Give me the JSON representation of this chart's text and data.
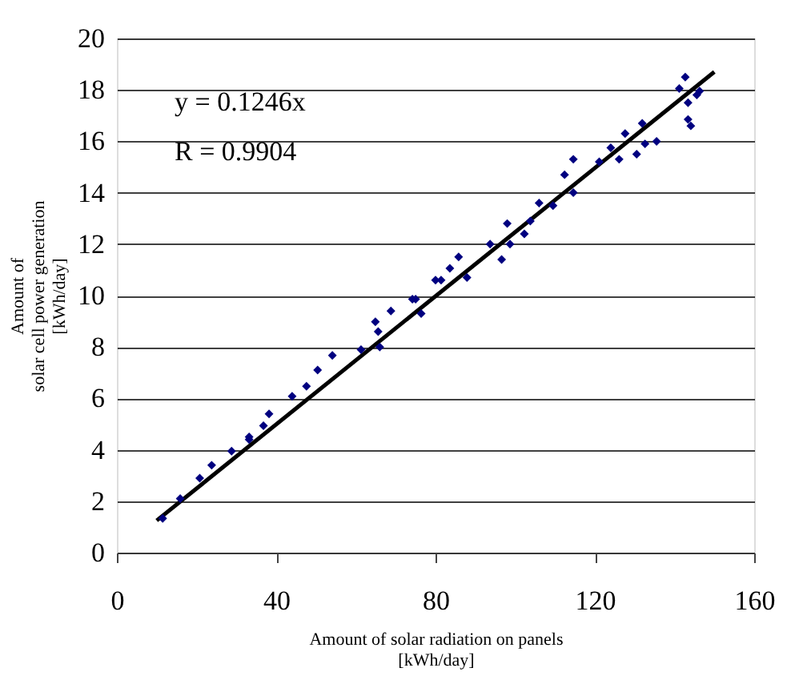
{
  "chart_data": {
    "type": "scatter",
    "xlabel": "Amount of solar radiation on panels\n[kWh/day]",
    "ylabel": "Amount of\nsolar cell power generation\n[kWh/day]",
    "xlim": [
      0,
      160
    ],
    "xticks": [
      0,
      40,
      80,
      120,
      160
    ],
    "ylim": [
      0,
      20
    ],
    "yticks": [
      0,
      2,
      4,
      6,
      8,
      10,
      12,
      14,
      16,
      18,
      20
    ],
    "grid": "y",
    "marker": "diamond",
    "annotations": [
      "y = 0.1246x",
      "R  = 0.9904"
    ],
    "series": [
      {
        "color": "#000080",
        "x": [
          11.5,
          15.9,
          20.8,
          23.8,
          28.8,
          33.2,
          33.2,
          36.8,
          38.2,
          44,
          47.6,
          50.4,
          54.1,
          61.3,
          64.9,
          66,
          65.6,
          68.8,
          74.2,
          76.4,
          80,
          75,
          81.4,
          83.6,
          85.8,
          87.9,
          93.7,
          96.6,
          98,
          98.7,
          102.3,
          103.8,
          106,
          109.5,
          112.4,
          114.6,
          114.6,
          121.1,
          124,
          126.1,
          127.6,
          130.5,
          131.9,
          132.6,
          135.5,
          141.2,
          142.7,
          143.4,
          143.4,
          144.1,
          145.6,
          146.3
        ],
        "values": [
          1.33,
          2.1,
          2.9,
          3.4,
          3.95,
          4.5,
          4.4,
          4.94,
          5.4,
          6.08,
          6.47,
          7.1,
          7.67,
          7.9,
          8.98,
          8.0,
          8.6,
          9.4,
          9.86,
          9.3,
          10.6,
          9.86,
          10.6,
          11.06,
          11.5,
          10.7,
          12.0,
          11.4,
          12.8,
          12.0,
          12.4,
          12.9,
          13.6,
          13.5,
          14.7,
          15.3,
          14.0,
          15.2,
          15.75,
          15.3,
          16.3,
          15.5,
          16.7,
          15.9,
          16.0,
          18.05,
          18.5,
          17.5,
          16.85,
          16.6,
          17.8,
          17.95
        ]
      },
      {
        "type": "line",
        "marker": "none",
        "color": "#000000",
        "x": [
          10,
          150
        ],
        "values": [
          1.25,
          18.7
        ]
      }
    ]
  }
}
